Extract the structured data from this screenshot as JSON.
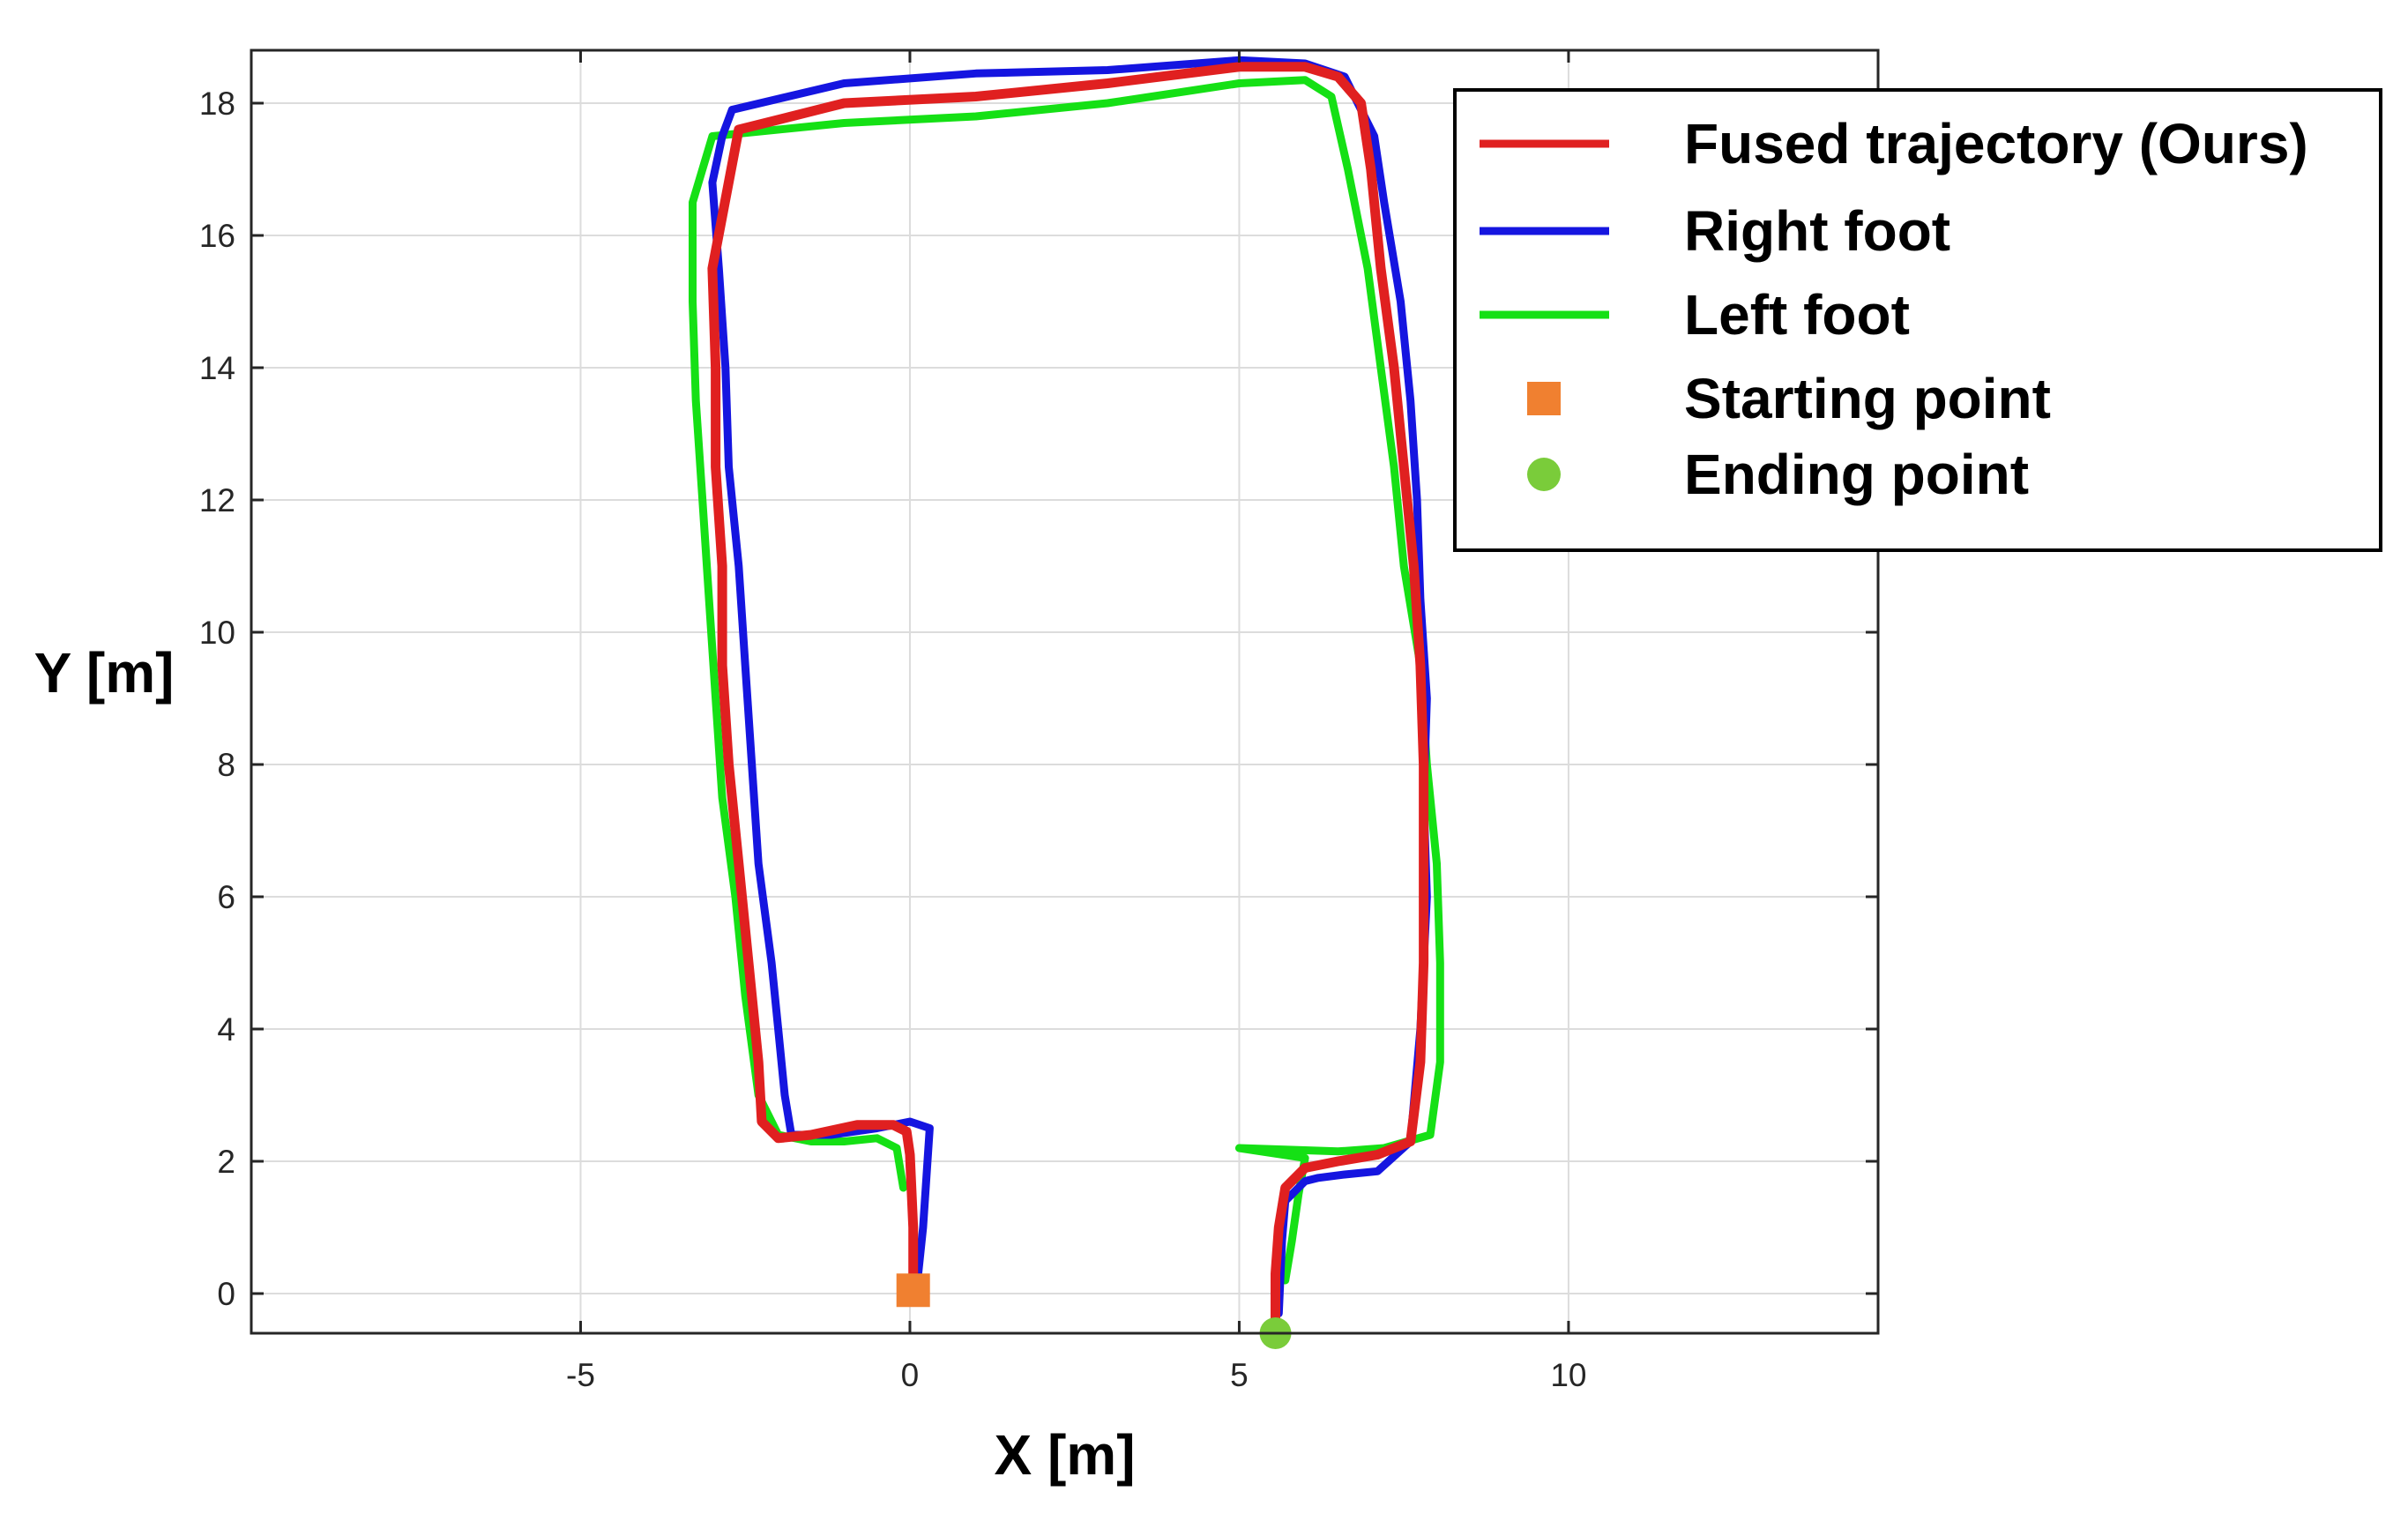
{
  "chart_data": {
    "type": "line",
    "title": "",
    "xlabel": "X [m]",
    "ylabel": "Y [m]",
    "xlim": [
      -10,
      14.7
    ],
    "ylim": [
      -0.6,
      18.8
    ],
    "xticks": [
      -5,
      0,
      5,
      10
    ],
    "yticks": [
      0,
      2,
      4,
      6,
      8,
      10,
      12,
      14,
      16,
      18
    ],
    "grid": true,
    "legend_location": "top-right",
    "series": [
      {
        "name": "Fused trajectory (Ours)",
        "color": "#e02020",
        "x": [
          0.05,
          0.05,
          0.0,
          -0.05,
          -0.25,
          -0.8,
          -1.5,
          -2.0,
          -2.25,
          -2.3,
          -2.45,
          -2.6,
          -2.75,
          -2.85,
          -2.85,
          -2.95,
          -2.95,
          -3.0,
          -2.6,
          -1.0,
          1.0,
          3.0,
          5.0,
          6.0,
          6.5,
          6.85,
          7.0,
          7.15,
          7.35,
          7.5,
          7.65,
          7.75,
          7.8,
          7.8,
          7.8,
          7.75,
          7.6,
          7.1,
          6.5,
          6.0,
          5.7,
          5.6,
          5.55,
          5.55,
          5.55
        ],
        "y": [
          0.05,
          1.0,
          2.1,
          2.45,
          2.55,
          2.55,
          2.4,
          2.35,
          2.6,
          3.5,
          5.0,
          6.5,
          8.0,
          9.5,
          11.0,
          12.5,
          14.0,
          15.5,
          17.6,
          18.0,
          18.1,
          18.3,
          18.55,
          18.55,
          18.4,
          18.0,
          17.0,
          15.5,
          14.0,
          12.5,
          11.0,
          9.5,
          8.0,
          6.5,
          5.0,
          3.5,
          2.3,
          2.1,
          2.0,
          1.9,
          1.6,
          1.0,
          0.3,
          -0.2,
          -0.5
        ]
      },
      {
        "name": "Right foot",
        "color": "#1515e0",
        "x": [
          0.1,
          0.2,
          0.3,
          0.0,
          -0.5,
          -1.2,
          -1.8,
          -1.9,
          -2.0,
          -2.1,
          -2.3,
          -2.4,
          -2.5,
          -2.6,
          -2.75,
          -2.8,
          -2.9,
          -3.0,
          -2.85,
          -2.7,
          -1.0,
          1.0,
          3.0,
          5.0,
          6.0,
          6.6,
          7.05,
          7.2,
          7.45,
          7.6,
          7.7,
          7.75,
          7.85,
          7.8,
          7.85,
          7.75,
          7.6,
          7.1,
          6.6,
          6.2,
          6.0,
          5.7,
          5.65,
          5.6
        ],
        "y": [
          0.05,
          1.0,
          2.5,
          2.6,
          2.5,
          2.4,
          2.4,
          3.0,
          4.0,
          5.0,
          6.5,
          8.0,
          9.5,
          11.0,
          12.5,
          14.0,
          15.5,
          16.8,
          17.5,
          17.9,
          18.3,
          18.45,
          18.5,
          18.65,
          18.6,
          18.4,
          17.5,
          16.5,
          15.0,
          13.5,
          12.0,
          10.5,
          9.0,
          7.5,
          6.0,
          4.0,
          2.3,
          1.85,
          1.8,
          1.75,
          1.7,
          1.4,
          0.8,
          -0.3
        ]
      },
      {
        "name": "Left foot",
        "color": "#15e015",
        "x": [
          -0.1,
          -0.2,
          -0.5,
          -1.0,
          -1.5,
          -2.0,
          -2.3,
          -2.5,
          -2.65,
          -2.85,
          -2.95,
          -3.05,
          -3.15,
          -3.25,
          -3.3,
          -3.3,
          -3.0,
          -1.0,
          1.0,
          3.0,
          5.0,
          6.0,
          6.4,
          6.65,
          6.95,
          7.15,
          7.35,
          7.5,
          7.75,
          7.85,
          8.0,
          8.05,
          8.05,
          7.9,
          7.2,
          6.5,
          5.0,
          6.0,
          5.9,
          5.8,
          5.7
        ],
        "y": [
          1.6,
          2.2,
          2.35,
          2.3,
          2.3,
          2.4,
          3.0,
          4.5,
          6.0,
          7.5,
          9.0,
          10.5,
          12.0,
          13.5,
          15.0,
          16.5,
          17.5,
          17.7,
          17.8,
          18.0,
          18.3,
          18.35,
          18.1,
          17.0,
          15.5,
          14.0,
          12.5,
          11.0,
          9.5,
          8.0,
          6.5,
          5.0,
          3.5,
          2.4,
          2.2,
          2.15,
          2.2,
          2.05,
          1.5,
          0.8,
          0.2
        ]
      }
    ],
    "markers": [
      {
        "name": "Starting point",
        "x": 0.05,
        "y": 0.05,
        "shape": "square",
        "color": "#f08030"
      },
      {
        "name": "Ending point",
        "x": 5.55,
        "y": -0.6,
        "shape": "circle",
        "color": "#7acc3a"
      }
    ]
  }
}
